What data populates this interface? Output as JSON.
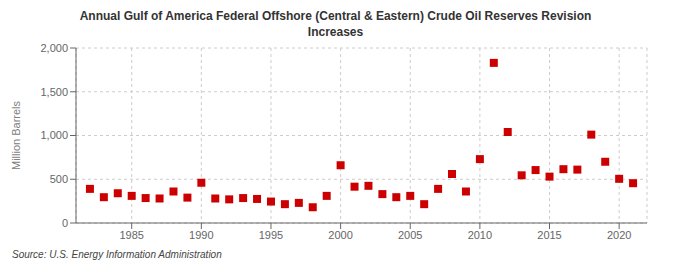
{
  "chart_data": {
    "type": "scatter",
    "title": "Annual Gulf of America Federal Offshore (Central & Eastern) Crude Oil Reserves Revision\nIncreases",
    "ylabel": "Million Barrels",
    "annotation": "Source: U.S. Energy Information Administration",
    "color": "#cc0000",
    "marker": "square",
    "grid": true,
    "x": [
      1982,
      1983,
      1984,
      1985,
      1986,
      1987,
      1988,
      1989,
      1990,
      1991,
      1992,
      1993,
      1994,
      1995,
      1996,
      1997,
      1998,
      1999,
      2000,
      2001,
      2002,
      2003,
      2004,
      2005,
      2006,
      2007,
      2008,
      2009,
      2010,
      2011,
      2012,
      2013,
      2014,
      2015,
      2016,
      2017,
      2018,
      2019,
      2020,
      2021
    ],
    "values": [
      390,
      295,
      340,
      310,
      285,
      280,
      360,
      290,
      460,
      280,
      270,
      285,
      275,
      245,
      215,
      230,
      180,
      310,
      660,
      415,
      425,
      330,
      295,
      310,
      215,
      390,
      560,
      360,
      730,
      1830,
      1040,
      545,
      605,
      530,
      615,
      610,
      1010,
      700,
      505,
      455
    ],
    "xlim": [
      1981,
      2022
    ],
    "xticks": [
      1985,
      1990,
      1995,
      2000,
      2005,
      2010,
      2015,
      2020
    ],
    "ylim": [
      0,
      2000
    ],
    "yticks": [
      0,
      500,
      {
        "value": 1000,
        "label": "1,000"
      },
      {
        "value": 1500,
        "label": "1,500"
      },
      {
        "value": 2000,
        "label": "2,000"
      }
    ]
  }
}
